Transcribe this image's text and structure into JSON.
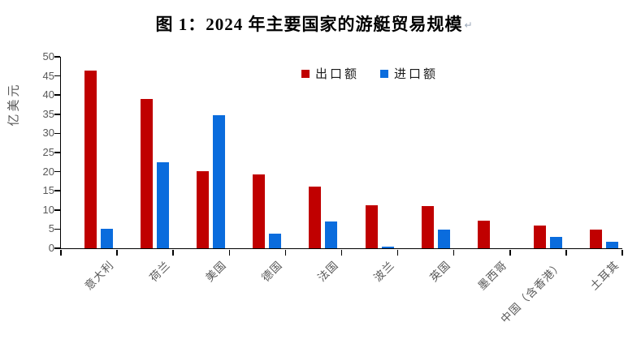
{
  "title": {
    "text": "图 1：2024 年主要国家的游艇贸易规模",
    "paragraph_mark": "↵"
  },
  "colors": {
    "export_bar": "#C00000",
    "import_bar": "#0A6CDD",
    "axis": "#000000",
    "tick_label": "#595959"
  },
  "legend": {
    "items": [
      {
        "label": "出口额",
        "color": "#C00000"
      },
      {
        "label": "进口额",
        "color": "#0A6CDD"
      }
    ]
  },
  "chart_data": {
    "type": "bar",
    "title": "图 1：2024 年主要国家的游艇贸易规模",
    "xlabel": "",
    "ylabel": "亿美元",
    "ylim": [
      0,
      50
    ],
    "yticks": [
      0,
      5,
      10,
      15,
      20,
      25,
      30,
      35,
      40,
      45,
      50
    ],
    "grid": false,
    "legend_position": "top-center",
    "categories": [
      "意大利",
      "荷兰",
      "美国",
      "德国",
      "法国",
      "波兰",
      "英国",
      "墨西哥",
      "中国（含香港）",
      "土耳其"
    ],
    "series": [
      {
        "name": "出口额",
        "color": "#C00000",
        "values": [
          46.5,
          39.0,
          20.2,
          19.2,
          16.0,
          11.2,
          11.0,
          7.2,
          5.9,
          4.8
        ]
      },
      {
        "name": "进口额",
        "color": "#0A6CDD",
        "values": [
          5.0,
          22.5,
          34.7,
          3.9,
          6.9,
          0.4,
          4.9,
          0,
          3.0,
          1.6
        ]
      }
    ]
  }
}
